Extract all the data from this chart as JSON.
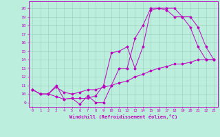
{
  "xlabel": "Windchill (Refroidissement éolien,°C)",
  "bg_color": "#bbeedd",
  "line_color": "#bb00bb",
  "grid_color": "#99ccbb",
  "x_ticks": [
    0,
    1,
    2,
    3,
    4,
    5,
    6,
    7,
    8,
    9,
    10,
    11,
    12,
    13,
    14,
    15,
    16,
    17,
    18,
    19,
    20,
    21,
    22,
    23
  ],
  "y_ticks": [
    9,
    10,
    11,
    12,
    13,
    14,
    15,
    16,
    17,
    18,
    19,
    20
  ],
  "ylim": [
    8.5,
    20.8
  ],
  "xlim": [
    -0.5,
    23.5
  ],
  "line1_x": [
    0,
    1,
    2,
    3,
    4,
    5,
    6,
    7,
    8,
    9,
    10,
    11,
    12,
    13,
    14,
    15,
    16,
    17,
    18,
    19,
    20,
    21,
    22,
    23
  ],
  "line1_y": [
    10.5,
    10.0,
    10.0,
    9.7,
    9.4,
    9.5,
    8.8,
    9.8,
    9.0,
    9.0,
    11.0,
    13.0,
    13.0,
    16.5,
    18.0,
    20.0,
    20.0,
    19.8,
    19.0,
    19.0,
    17.8,
    15.5,
    14.0,
    14.0
  ],
  "line2_x": [
    0,
    1,
    2,
    3,
    4,
    5,
    6,
    7,
    8,
    9,
    10,
    11,
    12,
    13,
    14,
    15,
    16,
    17,
    18,
    19,
    20,
    21,
    22,
    23
  ],
  "line2_y": [
    10.5,
    10.0,
    10.0,
    11.0,
    9.4,
    9.5,
    9.5,
    9.5,
    9.8,
    11.0,
    14.8,
    15.0,
    15.5,
    13.0,
    15.5,
    19.8,
    20.0,
    20.0,
    20.0,
    19.0,
    19.0,
    17.8,
    15.5,
    14.0
  ],
  "line3_x": [
    0,
    1,
    2,
    3,
    4,
    5,
    6,
    7,
    8,
    9,
    10,
    11,
    12,
    13,
    14,
    15,
    16,
    17,
    18,
    19,
    20,
    21,
    22,
    23
  ],
  "line3_y": [
    10.5,
    10.0,
    10.0,
    10.8,
    10.2,
    10.0,
    10.2,
    10.5,
    10.5,
    10.8,
    11.0,
    11.3,
    11.5,
    12.0,
    12.3,
    12.7,
    13.0,
    13.2,
    13.5,
    13.5,
    13.7,
    14.0,
    14.0,
    14.0
  ]
}
